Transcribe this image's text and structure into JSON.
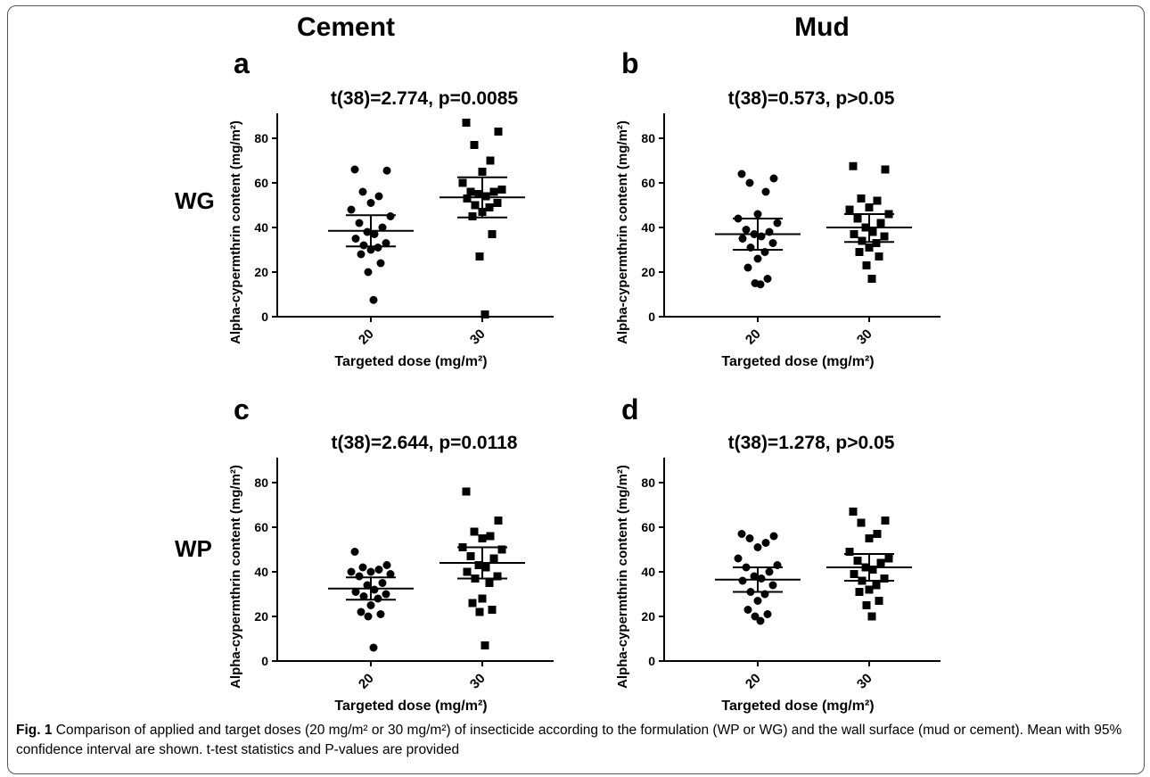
{
  "figure": {
    "columns": [
      "Cement",
      "Mud"
    ],
    "rows": [
      "WG",
      "WP"
    ],
    "caption": {
      "label": "Fig. 1",
      "text": "Comparison of applied and target doses (20 mg/m² or 30 mg/m²) of insecticide according to the formulation (WP or WG) and the wall surface (mud or cement). Mean with 95% confidence interval are shown. t-test statistics and P-values are provided"
    }
  },
  "chart_data": [
    {
      "panel": "a",
      "type": "scatter",
      "title": "t(38)=2.774, p=0.0085",
      "xlabel": "Targeted dose (mg/m²)",
      "ylabel": "Alpha-cypermthrin content (mg/m²)",
      "categories": [
        "20",
        "30"
      ],
      "ylim": [
        0,
        90
      ],
      "yticks": [
        0,
        20,
        40,
        60,
        80
      ],
      "series": [
        {
          "category": "20",
          "marker": "circle",
          "values": [
            66,
            65.5,
            56,
            54,
            51,
            48,
            45,
            42,
            40,
            38,
            37,
            35,
            33,
            32,
            31,
            30,
            28,
            24,
            20,
            7.5
          ],
          "mean": 38.5,
          "ci": [
            31.5,
            45.5
          ]
        },
        {
          "category": "30",
          "marker": "square",
          "values": [
            87,
            83,
            77,
            70,
            65,
            60,
            57,
            56,
            56,
            55,
            54,
            53,
            51,
            50,
            49,
            47,
            45,
            37,
            27,
            1
          ],
          "mean": 53.5,
          "ci": [
            44.5,
            62.5
          ]
        }
      ]
    },
    {
      "panel": "b",
      "type": "scatter",
      "title": "t(38)=0.573, p>0.05",
      "xlabel": "Targeted dose (mg/m²)",
      "ylabel": "Alpha-cypermthrin content (mg/m²)",
      "categories": [
        "20",
        "30"
      ],
      "ylim": [
        0,
        90
      ],
      "yticks": [
        0,
        20,
        40,
        60,
        80
      ],
      "series": [
        {
          "category": "20",
          "marker": "circle",
          "values": [
            64,
            62,
            60,
            56,
            46,
            44,
            42,
            39,
            38,
            37,
            36,
            35,
            33,
            31,
            29,
            26,
            22,
            17,
            15,
            14.5
          ],
          "mean": 37,
          "ci": [
            30,
            44
          ]
        },
        {
          "category": "30",
          "marker": "square",
          "values": [
            67.5,
            66,
            53,
            52,
            49,
            48,
            46,
            44,
            42,
            40,
            38,
            37,
            36,
            34,
            33,
            31,
            29,
            27,
            23,
            17
          ],
          "mean": 40,
          "ci": [
            33.5,
            46
          ]
        }
      ]
    },
    {
      "panel": "c",
      "type": "scatter",
      "title": "t(38)=2.644, p=0.0118",
      "xlabel": "Targeted dose (mg/m²)",
      "ylabel": "Alpha-cypermthrin content (mg/m²)",
      "categories": [
        "20",
        "30"
      ],
      "ylim": [
        0,
        90
      ],
      "yticks": [
        0,
        20,
        40,
        60,
        80
      ],
      "series": [
        {
          "category": "20",
          "marker": "circle",
          "values": [
            49,
            43,
            42,
            41,
            40,
            40,
            39,
            38,
            35,
            34,
            32,
            31,
            30,
            29,
            28,
            25,
            22,
            21,
            20,
            6
          ],
          "mean": 32.5,
          "ci": [
            27.5,
            37.5
          ]
        },
        {
          "category": "30",
          "marker": "square",
          "values": [
            76,
            63,
            58,
            56,
            55,
            51,
            50,
            47,
            46,
            43,
            42,
            40,
            38,
            37,
            35,
            28,
            26,
            23,
            22,
            7
          ],
          "mean": 44,
          "ci": [
            37,
            51
          ]
        }
      ]
    },
    {
      "panel": "d",
      "type": "scatter",
      "title": "t(38)=1.278, p>0.05",
      "xlabel": "Targeted dose (mg/m²)",
      "ylabel": "Alpha-cypermthrin content (mg/m²)",
      "categories": [
        "20",
        "30"
      ],
      "ylim": [
        0,
        90
      ],
      "yticks": [
        0,
        20,
        40,
        60,
        80
      ],
      "series": [
        {
          "category": "20",
          "marker": "circle",
          "values": [
            57,
            56,
            55,
            53,
            51,
            46,
            43,
            42,
            40,
            38,
            37,
            36,
            34,
            31,
            30,
            27,
            23,
            21,
            20,
            18
          ],
          "mean": 36.5,
          "ci": [
            31,
            42
          ]
        },
        {
          "category": "30",
          "marker": "square",
          "values": [
            67,
            63,
            62,
            57,
            55,
            49,
            46,
            45,
            44,
            42,
            41,
            39,
            37,
            36,
            34,
            32,
            31,
            27,
            25,
            20
          ],
          "mean": 42,
          "ci": [
            36,
            48
          ]
        }
      ]
    }
  ]
}
